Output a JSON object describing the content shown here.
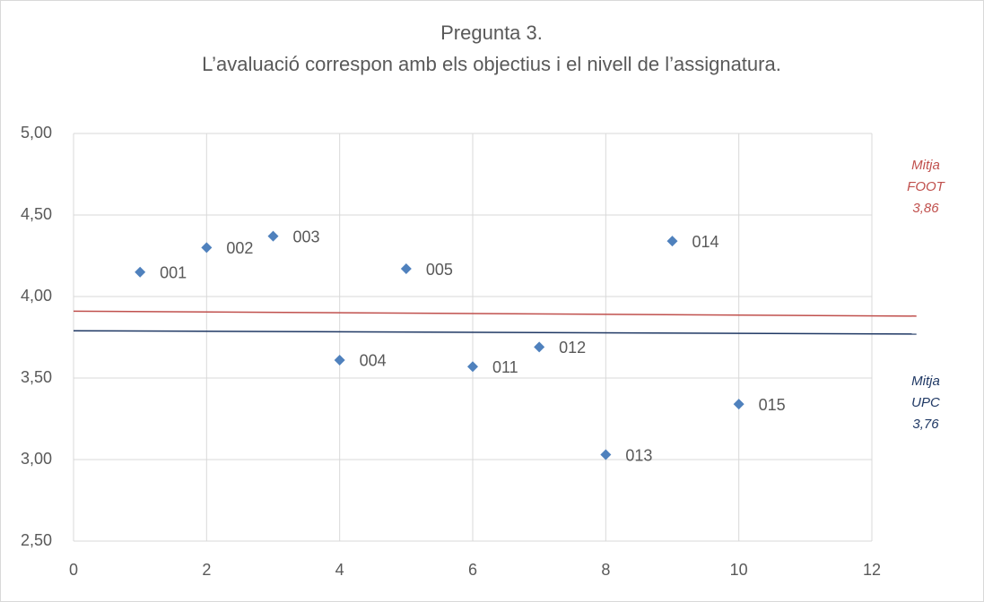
{
  "chart_data": {
    "type": "scatter",
    "title": [
      "Pregunta 3.",
      "L’avaluació correspon amb els objectius i el nivell de l’assignatura."
    ],
    "x": [
      1,
      2,
      3,
      4,
      5,
      6,
      7,
      8,
      9,
      10
    ],
    "values": [
      4.15,
      4.3,
      4.37,
      3.61,
      4.17,
      3.57,
      3.69,
      3.03,
      4.34,
      3.34
    ],
    "point_labels": [
      "001",
      "002",
      "003",
      "004",
      "005",
      "011",
      "012",
      "013",
      "014",
      "015"
    ],
    "color": "#4f81bd",
    "lines": [
      {
        "x": [
          0,
          12.67
        ],
        "values": [
          3.91,
          3.88
        ],
        "color": "#c0504d"
      },
      {
        "x": [
          0,
          12.67
        ],
        "values": [
          3.79,
          3.77
        ],
        "color": "#1f3864"
      }
    ],
    "annotations": [
      {
        "lines": [
          "Mitja",
          "FOOT",
          "3,86"
        ],
        "color": "#c0504d"
      },
      {
        "lines": [
          "Mitja",
          "UPC",
          "3,76"
        ],
        "color": "#1f3864"
      }
    ],
    "xlim": [
      0,
      12
    ],
    "xticks": [
      0,
      2,
      4,
      6,
      8,
      10,
      12
    ],
    "ylim": [
      2.5,
      5
    ],
    "yticks": [
      {
        "value": 2.5,
        "label": "2,50"
      },
      {
        "value": 3,
        "label": "3,00"
      },
      {
        "value": 3.5,
        "label": "3,50"
      },
      {
        "value": 4,
        "label": "4,00"
      },
      {
        "value": 4.5,
        "label": "4,50"
      },
      {
        "value": 5,
        "label": "5,00"
      }
    ],
    "grid": true
  }
}
